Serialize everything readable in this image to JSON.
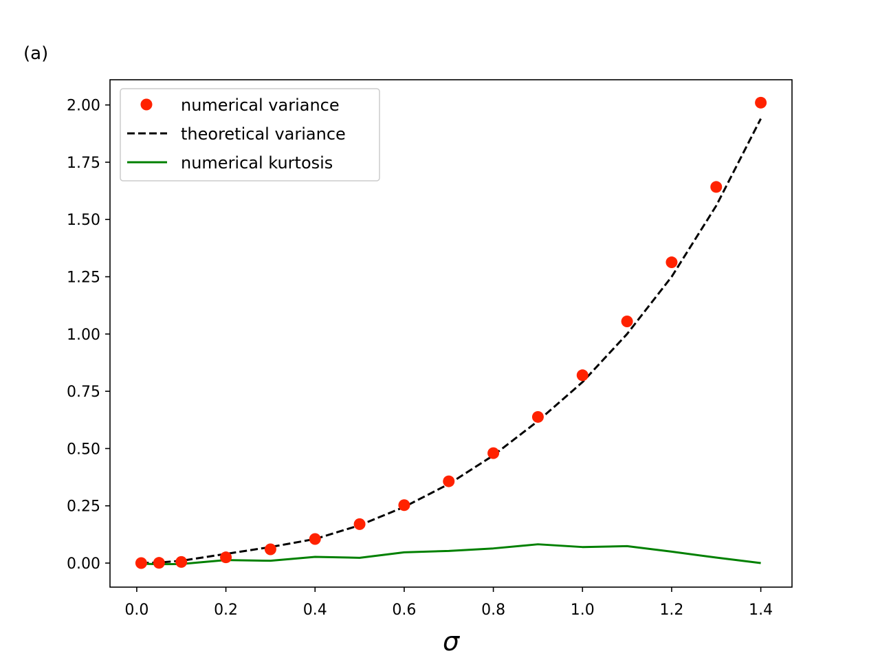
{
  "chart_data": {
    "type": "line",
    "panel_label": "(a)",
    "title": "",
    "xlabel": "σ",
    "ylabel": "",
    "xlim": [
      -0.06,
      1.47
    ],
    "ylim": [
      -0.105,
      2.11
    ],
    "grid": false,
    "legend_position": "top-left",
    "x_ticks": [
      0.0,
      0.2,
      0.4,
      0.6,
      0.8,
      1.0,
      1.2,
      1.4
    ],
    "x_tick_labels": [
      "0.0",
      "0.2",
      "0.4",
      "0.6",
      "0.8",
      "1.0",
      "1.2",
      "1.4"
    ],
    "y_ticks": [
      0.0,
      0.25,
      0.5,
      0.75,
      1.0,
      1.25,
      1.5,
      1.75,
      2.0
    ],
    "y_tick_labels": [
      "0.00",
      "0.25",
      "0.50",
      "0.75",
      "1.00",
      "1.25",
      "1.50",
      "1.75",
      "2.00"
    ],
    "series": [
      {
        "name": "numerical variance",
        "style": "markers",
        "color": "#ff2200",
        "x": [
          0.01,
          0.05,
          0.1,
          0.2,
          0.3,
          0.4,
          0.5,
          0.6,
          0.7,
          0.8,
          0.9,
          1.0,
          1.1,
          1.2,
          1.3,
          1.4
        ],
        "y": [
          0.0,
          0.001,
          0.005,
          0.025,
          0.06,
          0.105,
          0.17,
          0.253,
          0.357,
          0.48,
          0.638,
          0.82,
          1.055,
          1.313,
          1.642,
          2.01
        ]
      },
      {
        "name": "theoretical variance",
        "style": "dashed",
        "color": "#000000",
        "x": [
          0.01,
          0.05,
          0.1,
          0.2,
          0.3,
          0.4,
          0.5,
          0.6,
          0.7,
          0.8,
          0.9,
          1.0,
          1.1,
          1.2,
          1.3,
          1.4
        ],
        "y": [
          0.0001,
          0.0025,
          0.01,
          0.04,
          0.07,
          0.105,
          0.165,
          0.245,
          0.345,
          0.47,
          0.62,
          0.79,
          1.0,
          1.25,
          1.56,
          1.94
        ]
      },
      {
        "name": "numerical kurtosis",
        "style": "solid",
        "color": "#008000",
        "x": [
          0.01,
          0.05,
          0.1,
          0.2,
          0.3,
          0.4,
          0.5,
          0.6,
          0.7,
          0.8,
          0.9,
          1.0,
          1.1,
          1.2,
          1.3,
          1.4
        ],
        "y": [
          -0.003,
          -0.005,
          -0.004,
          0.013,
          0.01,
          0.027,
          0.023,
          0.047,
          0.053,
          0.064,
          0.082,
          0.07,
          0.074,
          0.05,
          0.024,
          0.0
        ]
      }
    ]
  }
}
